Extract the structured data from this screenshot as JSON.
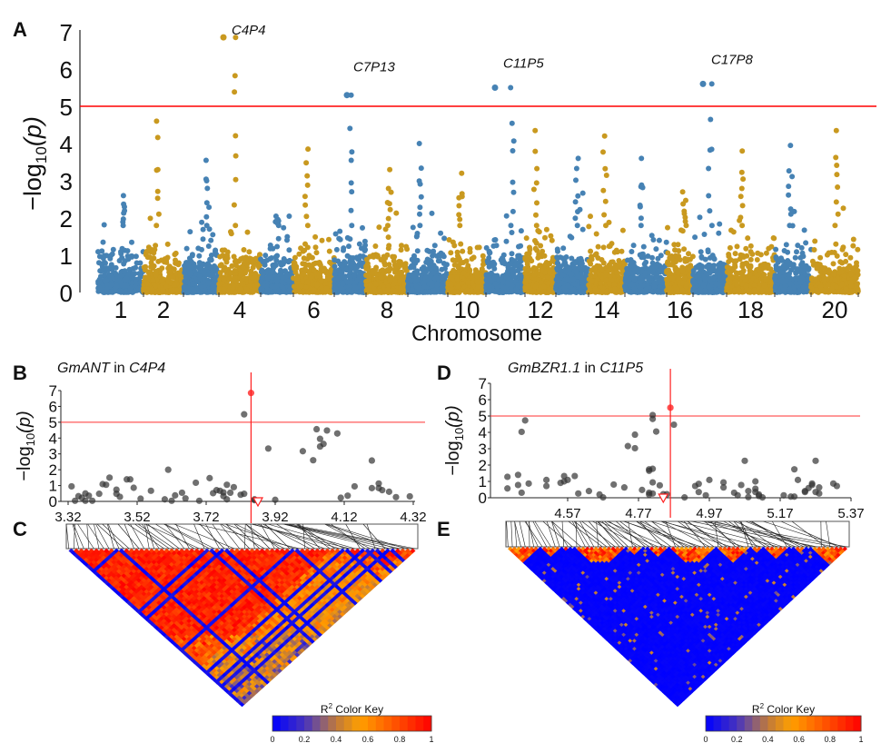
{
  "panels": {
    "a": "A",
    "b": "B",
    "c": "C",
    "d": "D",
    "e": "E"
  },
  "colors": {
    "blue": "#4682b4",
    "gold": "#c9991f",
    "threshold": "#ff0000",
    "regional_point": "#555555",
    "lead_point": "#ff5050"
  },
  "chart_data": [
    {
      "type": "scatter",
      "subtype": "manhattan",
      "xlabel": "Chromosome",
      "ylabel": {
        "prefix": "−log",
        "sub": "10",
        "suffix": "(p)"
      },
      "ylim": [
        0,
        7
      ],
      "yticks": [
        "0",
        "1",
        "2",
        "3",
        "4",
        "5",
        "6",
        "7"
      ],
      "chromosomes": [
        "1",
        "2",
        "3",
        "4",
        "5",
        "6",
        "7",
        "8",
        "9",
        "10",
        "11",
        "12",
        "13",
        "14",
        "15",
        "16",
        "17",
        "18",
        "19",
        "20"
      ],
      "xtick_labels": [
        "1",
        "2",
        "4",
        "6",
        "8",
        "10",
        "12",
        "14",
        "16",
        "18",
        "20"
      ],
      "threshold": 5,
      "chromosome_peak_values": [
        2.6,
        4.6,
        3.55,
        6.85,
        2.05,
        3.85,
        5.3,
        3.3,
        4.0,
        3.2,
        5.5,
        4.35,
        3.6,
        4.2,
        3.6,
        2.7,
        5.6,
        3.8,
        3.95,
        4.35
      ],
      "peaks": [
        {
          "label": "C4P4",
          "chromosome": "4",
          "value": 6.85
        },
        {
          "label": "C7P13",
          "chromosome": "7",
          "value": 5.3
        },
        {
          "label": "C11P5",
          "chromosome": "11",
          "value": 5.5
        },
        {
          "label": "C17P8",
          "chromosome": "17",
          "value": 5.6
        }
      ],
      "grid": false
    },
    {
      "type": "scatter",
      "subtype": "regional",
      "title": {
        "gene": "GmANT",
        "mid": " in ",
        "locus": "C4P4"
      },
      "ylabel": {
        "prefix": "−log",
        "sub": "10",
        "suffix": "(p)"
      },
      "ylim": [
        0,
        7
      ],
      "yticks": [
        "0",
        "1",
        "2",
        "3",
        "4",
        "5",
        "6",
        "7"
      ],
      "xlim": [
        3.3,
        4.33
      ],
      "xticks": [
        "3.32",
        "3.52",
        "3.72",
        "3.92",
        "4.12",
        "4.32"
      ],
      "threshold": 5,
      "lead_snp": {
        "x": 3.85,
        "y": 6.85
      },
      "gene_marker_x": 3.87,
      "points": [
        [
          3.33,
          0.95
        ],
        [
          3.34,
          0.04
        ],
        [
          3.35,
          0.33
        ],
        [
          3.36,
          0.23
        ],
        [
          3.37,
          0.5
        ],
        [
          3.37,
          0.04
        ],
        [
          3.38,
          0.36
        ],
        [
          3.39,
          0.04
        ],
        [
          3.41,
          0.48
        ],
        [
          3.42,
          1.09
        ],
        [
          3.43,
          1.05
        ],
        [
          3.44,
          1.5
        ],
        [
          3.46,
          0.74
        ],
        [
          3.46,
          0.48
        ],
        [
          3.47,
          0.29
        ],
        [
          3.49,
          1.39
        ],
        [
          3.5,
          1.39
        ],
        [
          3.51,
          0.86
        ],
        [
          3.53,
          0.17
        ],
        [
          3.56,
          0.67
        ],
        [
          3.6,
          0.13
        ],
        [
          3.61,
          2.0
        ],
        [
          3.62,
          0.04
        ],
        [
          3.63,
          0.38
        ],
        [
          3.65,
          0.55
        ],
        [
          3.66,
          0.19
        ],
        [
          3.69,
          1.18
        ],
        [
          3.7,
          0.04
        ],
        [
          3.73,
          1.47
        ],
        [
          3.74,
          0.52
        ],
        [
          3.75,
          0.71
        ],
        [
          3.76,
          0.67
        ],
        [
          3.77,
          0.33
        ],
        [
          3.77,
          0.57
        ],
        [
          3.78,
          0.13
        ],
        [
          3.78,
          1.05
        ],
        [
          3.79,
          0.55
        ],
        [
          3.8,
          0.9
        ],
        [
          3.82,
          0.42
        ],
        [
          3.83,
          0.48
        ],
        [
          3.83,
          5.5
        ],
        [
          3.86,
          0.13
        ],
        [
          3.86,
          0.08
        ],
        [
          3.9,
          3.34
        ],
        [
          3.92,
          0.1
        ],
        [
          4.0,
          3.17
        ],
        [
          4.03,
          2.6
        ],
        [
          4.04,
          4.56
        ],
        [
          4.05,
          3.95
        ],
        [
          4.05,
          3.47
        ],
        [
          4.06,
          3.63
        ],
        [
          4.07,
          4.48
        ],
        [
          4.1,
          4.29
        ],
        [
          4.11,
          0.23
        ],
        [
          4.13,
          0.36
        ],
        [
          4.15,
          0.95
        ],
        [
          4.2,
          0.84
        ],
        [
          4.2,
          2.58
        ],
        [
          4.22,
          1.13
        ],
        [
          4.22,
          0.84
        ],
        [
          4.23,
          0.71
        ],
        [
          4.25,
          0.61
        ],
        [
          4.27,
          0.27
        ],
        [
          4.31,
          0.32
        ]
      ]
    },
    {
      "type": "scatter",
      "subtype": "regional",
      "title": {
        "gene": "GmBZR1.1",
        "mid": " in ",
        "locus": "C11P5"
      },
      "ylabel": {
        "prefix": "−log",
        "sub": "10",
        "suffix": "(p)"
      },
      "ylim": [
        0,
        7
      ],
      "yticks": [
        "0",
        "1",
        "2",
        "3",
        "4",
        "5",
        "6",
        "7"
      ],
      "xlim": [
        4.36,
        5.37
      ],
      "xticks": [
        "4.57",
        "4.77",
        "4.97",
        "5.17",
        "5.37"
      ],
      "threshold": 5,
      "lead_snp": {
        "x": 4.86,
        "y": 5.51
      },
      "gene_marker_x": 4.84,
      "points": [
        [
          4.4,
          1.28
        ],
        [
          4.4,
          0.57
        ],
        [
          4.43,
          1.4
        ],
        [
          4.43,
          0.78
        ],
        [
          4.44,
          4.03
        ],
        [
          4.44,
          0.31
        ],
        [
          4.45,
          4.73
        ],
        [
          4.46,
          0.87
        ],
        [
          4.51,
          1.09
        ],
        [
          4.51,
          0.72
        ],
        [
          4.55,
          0.91
        ],
        [
          4.56,
          1.0
        ],
        [
          4.56,
          1.33
        ],
        [
          4.57,
          1.09
        ],
        [
          4.59,
          1.33
        ],
        [
          4.6,
          0.26
        ],
        [
          4.63,
          0.41
        ],
        [
          4.66,
          0.2
        ],
        [
          4.67,
          0.02
        ],
        [
          4.7,
          0.81
        ],
        [
          4.73,
          0.63
        ],
        [
          4.74,
          3.16
        ],
        [
          4.76,
          3.03
        ],
        [
          4.76,
          3.86
        ],
        [
          4.78,
          0.48
        ],
        [
          4.8,
          1.65
        ],
        [
          4.8,
          1.74
        ],
        [
          4.81,
          1.77
        ],
        [
          4.8,
          0.31
        ],
        [
          4.8,
          0.2
        ],
        [
          4.81,
          0.94
        ],
        [
          4.81,
          0.26
        ],
        [
          4.81,
          4.82
        ],
        [
          4.81,
          5.06
        ],
        [
          4.82,
          4.05
        ],
        [
          4.83,
          0.76
        ],
        [
          4.84,
          0.22
        ],
        [
          4.85,
          0.22
        ],
        [
          4.87,
          4.47
        ],
        [
          4.9,
          0.02
        ],
        [
          4.93,
          0.72
        ],
        [
          4.94,
          0.85
        ],
        [
          4.94,
          0.35
        ],
        [
          4.97,
          1.09
        ],
        [
          4.96,
          0.15
        ],
        [
          5.01,
          0.94
        ],
        [
          5.01,
          0.63
        ],
        [
          5.04,
          0.31
        ],
        [
          5.05,
          0.15
        ],
        [
          5.06,
          0.78
        ],
        [
          5.07,
          2.26
        ],
        [
          5.08,
          0.41
        ],
        [
          5.08,
          0.04
        ],
        [
          5.1,
          1.0
        ],
        [
          5.1,
          0.35
        ],
        [
          5.1,
          0.55
        ],
        [
          5.11,
          0.2
        ],
        [
          5.11,
          0.11
        ],
        [
          5.12,
          0.02
        ],
        [
          5.18,
          0.15
        ],
        [
          5.2,
          0.07
        ],
        [
          5.21,
          1.74
        ],
        [
          5.21,
          0.07
        ],
        [
          5.22,
          1.09
        ],
        [
          5.24,
          0.35
        ],
        [
          5.24,
          0.41
        ],
        [
          5.25,
          0.59
        ],
        [
          5.26,
          0.87
        ],
        [
          5.26,
          0.78
        ],
        [
          5.27,
          2.26
        ],
        [
          5.27,
          0.35
        ],
        [
          5.28,
          0.26
        ],
        [
          5.28,
          0.63
        ],
        [
          5.32,
          0.87
        ],
        [
          5.33,
          0.72
        ]
      ]
    },
    {
      "type": "heatmap",
      "subtype": "ld-triangle",
      "pattern": "high LD (mostly orange/red) with blue stripes",
      "color_key": {
        "title": "R",
        "sup": "2",
        "suffix": " Color Key",
        "ticks": [
          "0",
          "0.2",
          "0.4",
          "0.6",
          "0.8",
          "1"
        ],
        "range": [
          0,
          1
        ]
      }
    },
    {
      "type": "heatmap",
      "subtype": "ld-triangle",
      "pattern": "low LD (mostly blue) with small red/orange blocks near diagonal",
      "color_key": {
        "title": "R",
        "sup": "2",
        "suffix": " Color Key",
        "ticks": [
          "0",
          "0.2",
          "0.4",
          "0.6",
          "0.8",
          "1"
        ],
        "range": [
          0,
          1
        ]
      }
    }
  ]
}
